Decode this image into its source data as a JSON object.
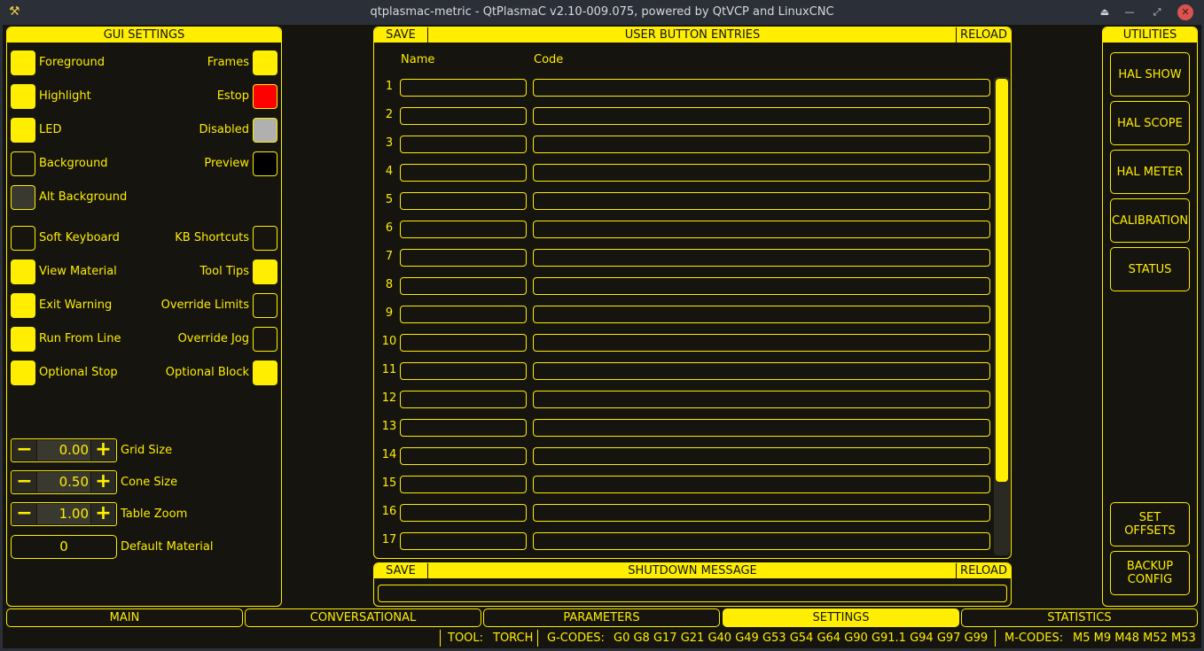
{
  "window": {
    "title": "qtplasmac-metric - QtPlasmaC v2.10-009.075, powered by QtVCP and LinuxCNC"
  },
  "gui_settings": {
    "title": "GUI SETTINGS",
    "colors_left": [
      {
        "label": "Foreground",
        "color": "#ffee00"
      },
      {
        "label": "Highlight",
        "color": "#ffee00"
      },
      {
        "label": "LED",
        "color": "#ffee00"
      },
      {
        "label": "Background",
        "color": "#15140e"
      },
      {
        "label": "Alt Background",
        "color": "#3a3930"
      }
    ],
    "colors_right": [
      {
        "label": "Frames",
        "color": "#ffee00"
      },
      {
        "label": "Estop",
        "color": "#ff0000"
      },
      {
        "label": "Disabled",
        "color": "#b0b0b0"
      },
      {
        "label": "Preview",
        "color": "#000000"
      }
    ],
    "checks_left": [
      {
        "label": "Soft Keyboard",
        "checked": false
      },
      {
        "label": "View Material",
        "checked": true
      },
      {
        "label": "Exit Warning",
        "checked": true
      },
      {
        "label": "Run From Line",
        "checked": true
      },
      {
        "label": "Optional Stop",
        "checked": true
      }
    ],
    "checks_right": [
      {
        "label": "KB Shortcuts",
        "checked": false
      },
      {
        "label": "Tool Tips",
        "checked": true
      },
      {
        "label": "Override Limits",
        "checked": false
      },
      {
        "label": "Override Jog",
        "checked": false
      },
      {
        "label": "Optional Block",
        "checked": true
      }
    ],
    "spins": [
      {
        "label": "Grid Size",
        "value": "0.00"
      },
      {
        "label": "Cone Size",
        "value": "0.50"
      },
      {
        "label": "Table Zoom",
        "value": "1.00"
      }
    ],
    "default_material": {
      "label": "Default Material",
      "value": "0"
    },
    "minus": "−",
    "plus": "+"
  },
  "user_buttons": {
    "save": "SAVE",
    "title": "USER BUTTON ENTRIES",
    "reload": "RELOAD",
    "col_name": "Name",
    "col_code": "Code",
    "rows": [
      "1",
      "2",
      "3",
      "4",
      "5",
      "6",
      "7",
      "8",
      "9",
      "10",
      "11",
      "12",
      "13",
      "14",
      "15",
      "16",
      "17"
    ],
    "scroll_position": 0
  },
  "shutdown": {
    "save": "SAVE",
    "title": "SHUTDOWN MESSAGE",
    "reload": "RELOAD",
    "value": ""
  },
  "utilities": {
    "title": "UTILITIES",
    "buttons": [
      "HAL SHOW",
      "HAL SCOPE",
      "HAL METER",
      "CALIBRATION",
      "STATUS"
    ],
    "bottom_buttons": [
      "SET\nOFFSETS",
      "BACKUP\nCONFIG"
    ]
  },
  "tabs": [
    {
      "label": "MAIN",
      "active": false
    },
    {
      "label": "CONVERSATIONAL",
      "active": false
    },
    {
      "label": "PARAMETERS",
      "active": false
    },
    {
      "label": "SETTINGS",
      "active": true
    },
    {
      "label": "STATISTICS",
      "active": false
    }
  ],
  "status": {
    "tool_label": "TOOL:",
    "tool": "TORCH",
    "gcodes_label": "G-CODES:",
    "gcodes": "G0 G8 G17 G21 G40 G49 G53 G54 G64 G90 G91.1 G94 G97 G99",
    "mcodes_label": "M-CODES:",
    "mcodes": "M5 M9 M48 M52 M53"
  },
  "colors": {
    "accent": "#ffee00",
    "background": "#15140e"
  }
}
